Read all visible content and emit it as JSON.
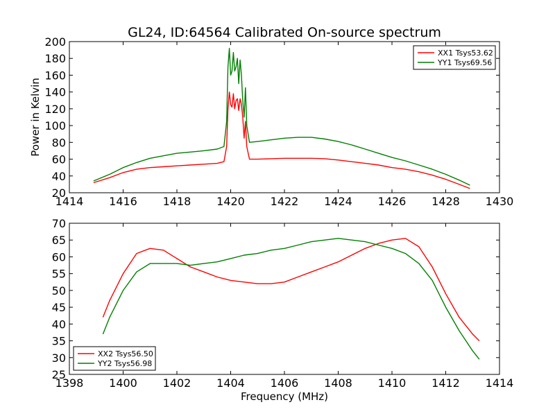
{
  "title": "GL24, ID:64564 Calibrated On-source spectrum",
  "colors": {
    "red": "#ff0000",
    "green": "#007f00"
  },
  "chart_data": [
    {
      "type": "line",
      "xlabel": "",
      "ylabel": "Power in Kelvin",
      "xlim": [
        1414,
        1430
      ],
      "ylim": [
        20,
        200
      ],
      "xticks": [
        1414,
        1416,
        1418,
        1420,
        1422,
        1424,
        1426,
        1428,
        1430
      ],
      "yticks": [
        20,
        40,
        60,
        80,
        100,
        120,
        140,
        160,
        180,
        200
      ],
      "legend": "top-right",
      "series": [
        {
          "name": "XX1 Tsys53.62",
          "color": "#ff0000",
          "x": [
            1414.9,
            1415.5,
            1416.0,
            1416.5,
            1417.0,
            1417.5,
            1418.0,
            1418.5,
            1419.0,
            1419.5,
            1419.75,
            1419.85,
            1419.9,
            1419.95,
            1420.0,
            1420.05,
            1420.1,
            1420.15,
            1420.2,
            1420.25,
            1420.3,
            1420.35,
            1420.4,
            1420.45,
            1420.5,
            1420.55,
            1420.6,
            1420.7,
            1421.0,
            1421.5,
            1422.0,
            1422.5,
            1423.0,
            1423.5,
            1424.0,
            1424.5,
            1425.0,
            1425.5,
            1426.0,
            1426.5,
            1427.0,
            1427.5,
            1428.0,
            1428.5,
            1428.9
          ],
          "y": [
            32,
            38,
            44,
            48,
            50,
            51,
            52,
            53,
            54,
            55,
            57,
            75,
            120,
            140,
            125,
            122,
            138,
            120,
            130,
            132,
            118,
            132,
            125,
            110,
            85,
            105,
            75,
            60,
            60,
            60.5,
            61,
            61,
            61,
            60.5,
            59,
            57,
            55,
            53,
            50,
            48,
            45,
            41,
            36,
            30,
            25
          ]
        },
        {
          "name": "YY1 Tsys69.56",
          "color": "#007f00",
          "x": [
            1414.9,
            1415.5,
            1416.0,
            1416.5,
            1417.0,
            1417.5,
            1418.0,
            1418.5,
            1419.0,
            1419.5,
            1419.75,
            1419.85,
            1419.9,
            1419.95,
            1420.0,
            1420.05,
            1420.1,
            1420.15,
            1420.2,
            1420.25,
            1420.3,
            1420.35,
            1420.4,
            1420.45,
            1420.5,
            1420.55,
            1420.6,
            1420.7,
            1421.0,
            1421.5,
            1422.0,
            1422.5,
            1423.0,
            1423.5,
            1424.0,
            1424.5,
            1425.0,
            1425.5,
            1426.0,
            1426.5,
            1427.0,
            1427.5,
            1428.0,
            1428.5,
            1428.9
          ],
          "y": [
            34,
            42,
            50,
            56,
            61,
            64,
            67,
            68.5,
            70,
            72,
            75,
            105,
            170,
            192,
            160,
            165,
            187,
            165,
            170,
            180,
            150,
            178,
            160,
            130,
            110,
            145,
            100,
            80,
            81,
            83,
            85,
            86,
            86,
            84,
            81,
            77,
            72,
            67,
            62,
            58,
            53,
            48,
            42,
            35,
            29
          ]
        }
      ]
    },
    {
      "type": "line",
      "xlabel": "Frequency (MHz)",
      "ylabel": "",
      "xlim": [
        1398,
        1414
      ],
      "ylim": [
        25,
        70
      ],
      "xticks": [
        1398,
        1400,
        1402,
        1404,
        1406,
        1408,
        1410,
        1412,
        1414
      ],
      "yticks": [
        25,
        30,
        35,
        40,
        45,
        50,
        55,
        60,
        65,
        70
      ],
      "legend": "bottom-left",
      "series": [
        {
          "name": "XX2 Tsys56.50",
          "color": "#ff0000",
          "x": [
            1399.25,
            1399.5,
            1400.0,
            1400.5,
            1401.0,
            1401.5,
            1402.0,
            1402.5,
            1403.0,
            1403.5,
            1404.0,
            1404.5,
            1405.0,
            1405.5,
            1406.0,
            1406.5,
            1407.0,
            1407.5,
            1408.0,
            1408.5,
            1409.0,
            1409.5,
            1410.0,
            1410.5,
            1411.0,
            1411.5,
            1412.0,
            1412.5,
            1413.0,
            1413.25
          ],
          "y": [
            42,
            47,
            55,
            61,
            62.5,
            62,
            59.5,
            57,
            55.5,
            54,
            53,
            52.5,
            52,
            52,
            52.5,
            54,
            55.5,
            57,
            58.5,
            60.5,
            62.5,
            64,
            65,
            65.5,
            63,
            57,
            49,
            42,
            37,
            35
          ]
        },
        {
          "name": "YY2 Tsys56.98",
          "color": "#007f00",
          "x": [
            1399.25,
            1399.5,
            1400.0,
            1400.5,
            1401.0,
            1401.5,
            1402.0,
            1402.5,
            1403.0,
            1403.5,
            1404.0,
            1404.5,
            1405.0,
            1405.5,
            1406.0,
            1406.5,
            1407.0,
            1407.5,
            1408.0,
            1408.5,
            1409.0,
            1409.5,
            1410.0,
            1410.5,
            1411.0,
            1411.5,
            1412.0,
            1412.5,
            1413.0,
            1413.25
          ],
          "y": [
            37,
            42,
            50,
            55.5,
            58,
            58,
            58,
            57.5,
            58,
            58.5,
            59.5,
            60.5,
            61,
            62,
            62.5,
            63.5,
            64.5,
            65,
            65.5,
            65,
            64.5,
            63.5,
            62.5,
            61,
            58,
            53,
            45,
            38,
            32,
            29.5
          ]
        }
      ]
    }
  ]
}
